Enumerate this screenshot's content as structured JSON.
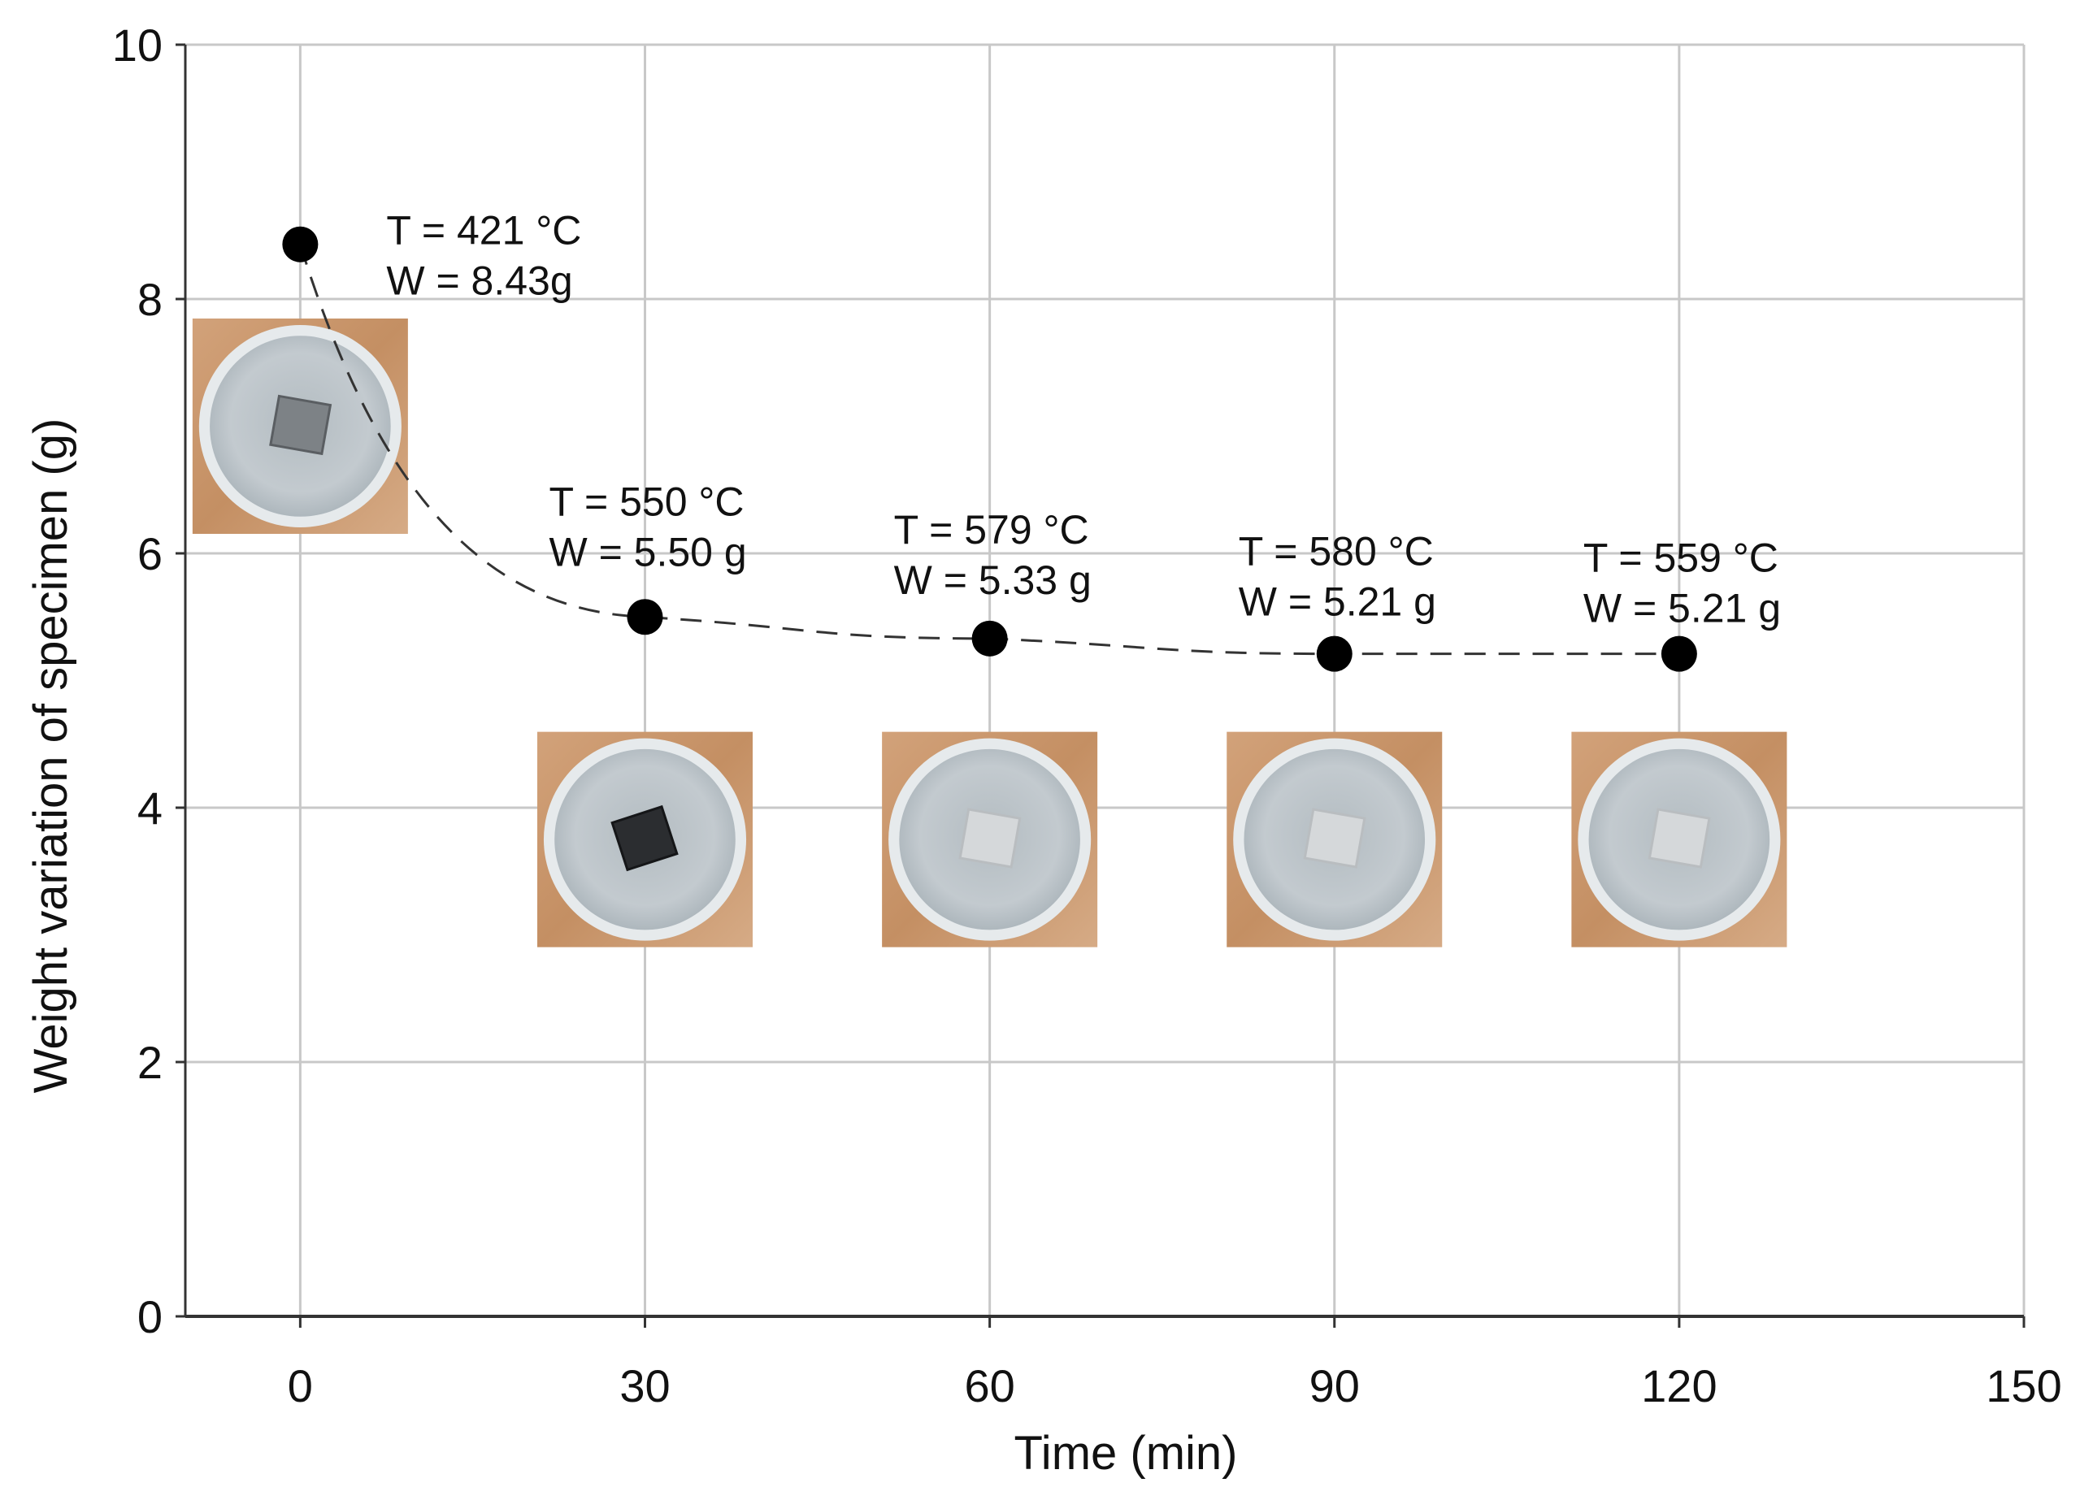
{
  "chart_data": {
    "type": "scatter",
    "title": "",
    "xlabel": "Time (min)",
    "ylabel": "Weight variation of specimen (g)",
    "xlim": [
      -10,
      150
    ],
    "ylim": [
      0,
      10
    ],
    "xticks": [
      0,
      30,
      60,
      90,
      120,
      150
    ],
    "yticks": [
      0,
      2,
      4,
      6,
      8,
      10
    ],
    "xtick_labels": [
      "0",
      "30",
      "60",
      "90",
      "120",
      "150"
    ],
    "ytick_labels": [
      "0",
      "2",
      "4",
      "6",
      "8",
      "10"
    ],
    "grid": true,
    "series": [
      {
        "name": "Weight",
        "x": [
          0,
          30,
          60,
          90,
          120
        ],
        "y": [
          8.43,
          5.5,
          5.33,
          5.21,
          5.21
        ]
      }
    ],
    "trend_line": "dashed",
    "annotations": [
      {
        "x": 0,
        "temp_label": "T = 421 °C",
        "weight_label": "W = 8.43g"
      },
      {
        "x": 30,
        "temp_label": "T = 550 °C",
        "weight_label": "W = 5.50 g"
      },
      {
        "x": 60,
        "temp_label": "T = 579 °C",
        "weight_label": "W = 5.33 g"
      },
      {
        "x": 90,
        "temp_label": "T = 580 °C",
        "weight_label": "W = 5.21 g"
      },
      {
        "x": 120,
        "temp_label": "T = 559 °C",
        "weight_label": "W = 5.21 g"
      }
    ],
    "photos": [
      {
        "x": 0,
        "specimen": "dark"
      },
      {
        "x": 30,
        "specimen": "black"
      },
      {
        "x": 60,
        "specimen": "light"
      },
      {
        "x": 90,
        "specimen": "light"
      },
      {
        "x": 120,
        "specimen": "light"
      }
    ]
  },
  "colors": {
    "marker": "#000000",
    "grid": "#c8c8c8",
    "axis": "#333333",
    "wood": "#c8966a",
    "bowl": "#bcc4c8",
    "bowl_rim": "#e6eaec"
  }
}
